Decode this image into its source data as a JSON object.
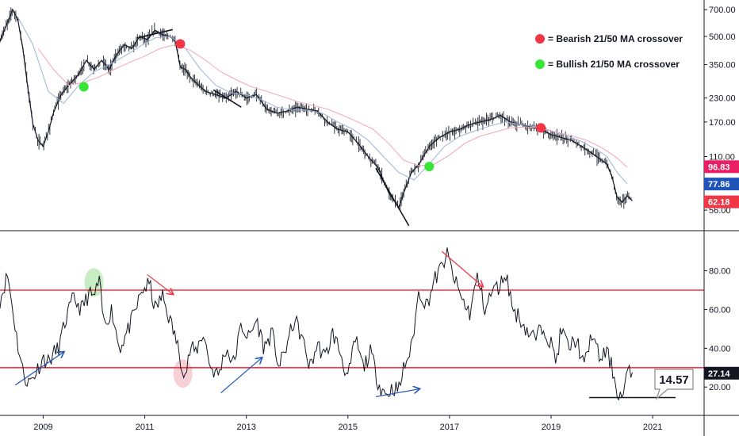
{
  "chart_data": [
    {
      "type": "line",
      "panel": "price",
      "y_scale": "log",
      "ylim": [
        45,
        760
      ],
      "x_tick_labels": [
        "2009",
        "2011",
        "2013",
        "2015",
        "2017",
        "2019",
        "2021"
      ],
      "x_ticks": [
        2009,
        2011,
        2013,
        2015,
        2017,
        2019,
        2021
      ],
      "xlim": [
        2008.15,
        2021.95
      ],
      "y_tick_labels": [
        "700.00",
        "500.00",
        "350.00",
        "230.00",
        "170.00",
        "110.00",
        "56.00"
      ],
      "y_ticks": [
        700,
        500,
        350,
        230,
        170,
        110,
        56
      ],
      "colors": {
        "price": "#131722",
        "ma21": "#9db3d8",
        "ma50": "#f2a6b8"
      },
      "series": [
        {
          "key": "price",
          "x": [
            2008.15,
            2008.3,
            2008.4,
            2008.5,
            2008.6,
            2008.7,
            2008.8,
            2008.9,
            2009.0,
            2009.1,
            2009.2,
            2009.35,
            2009.5,
            2009.7,
            2009.85,
            2010.0,
            2010.15,
            2010.3,
            2010.45,
            2010.6,
            2010.75,
            2010.9,
            2011.05,
            2011.2,
            2011.35,
            2011.5,
            2011.6,
            2011.7,
            2011.8,
            2011.9,
            2012.0,
            2012.2,
            2012.4,
            2012.6,
            2012.8,
            2013.0,
            2013.2,
            2013.4,
            2013.6,
            2013.8,
            2014.0,
            2014.2,
            2014.4,
            2014.6,
            2014.8,
            2015.0,
            2015.2,
            2015.4,
            2015.6,
            2015.8,
            2016.0,
            2016.1,
            2016.25,
            2016.4,
            2016.6,
            2016.8,
            2017.0,
            2017.2,
            2017.4,
            2017.6,
            2017.8,
            2018.0,
            2018.2,
            2018.4,
            2018.6,
            2018.8,
            2019.0,
            2019.2,
            2019.4,
            2019.6,
            2019.8,
            2020.0,
            2020.1,
            2020.2,
            2020.3,
            2020.4,
            2020.5,
            2020.6
          ],
          "y": [
            470,
            600,
            700,
            620,
            430,
            260,
            165,
            135,
            125,
            150,
            190,
            240,
            270,
            310,
            370,
            330,
            370,
            330,
            400,
            450,
            430,
            500,
            480,
            540,
            510,
            500,
            470,
            340,
            330,
            300,
            280,
            250,
            240,
            230,
            250,
            230,
            240,
            200,
            190,
            195,
            205,
            200,
            195,
            170,
            155,
            150,
            130,
            110,
            95,
            70,
            58,
            70,
            90,
            100,
            125,
            140,
            150,
            155,
            165,
            170,
            175,
            185,
            170,
            165,
            160,
            155,
            145,
            140,
            135,
            125,
            115,
            105,
            100,
            85,
            66,
            62,
            67,
            63
          ]
        },
        {
          "key": "ma21",
          "x": [
            2008.5,
            2008.8,
            2009.1,
            2009.4,
            2009.7,
            2010.0,
            2010.3,
            2010.6,
            2010.9,
            2011.2,
            2011.5,
            2011.8,
            2012.1,
            2012.4,
            2012.7,
            2013.0,
            2013.3,
            2013.6,
            2013.9,
            2014.2,
            2014.5,
            2014.8,
            2015.1,
            2015.4,
            2015.7,
            2016.0,
            2016.3,
            2016.6,
            2016.9,
            2017.2,
            2017.5,
            2017.8,
            2018.1,
            2018.4,
            2018.7,
            2019.0,
            2019.3,
            2019.6,
            2019.9,
            2020.1,
            2020.3,
            2020.5
          ],
          "y": [
            640,
            450,
            250,
            215,
            270,
            320,
            350,
            390,
            440,
            490,
            500,
            430,
            330,
            270,
            245,
            240,
            225,
            205,
            198,
            198,
            190,
            170,
            155,
            135,
            110,
            90,
            82,
            100,
            125,
            142,
            152,
            162,
            170,
            165,
            160,
            152,
            143,
            133,
            120,
            110,
            90,
            78
          ]
        },
        {
          "key": "ma50",
          "x": [
            2008.9,
            2009.2,
            2009.5,
            2009.8,
            2010.1,
            2010.4,
            2010.7,
            2011.0,
            2011.3,
            2011.6,
            2011.9,
            2012.2,
            2012.5,
            2012.8,
            2013.1,
            2013.4,
            2013.7,
            2014.0,
            2014.3,
            2014.6,
            2014.9,
            2015.2,
            2015.5,
            2015.8,
            2016.1,
            2016.4,
            2016.7,
            2017.0,
            2017.3,
            2017.6,
            2017.9,
            2018.2,
            2018.5,
            2018.8,
            2019.1,
            2019.4,
            2019.7,
            2020.0,
            2020.3,
            2020.5
          ],
          "y": [
            430,
            330,
            270,
            280,
            300,
            330,
            360,
            390,
            430,
            450,
            420,
            370,
            320,
            290,
            265,
            250,
            235,
            220,
            210,
            200,
            185,
            170,
            155,
            130,
            105,
            98,
            100,
            112,
            130,
            142,
            150,
            158,
            160,
            158,
            150,
            143,
            135,
            123,
            108,
            96
          ]
        }
      ],
      "legend": [
        {
          "label": "= Bearish 21/50 MA crossover",
          "color": "#f23645"
        },
        {
          "label": "= Bullish 21/50 MA crossover",
          "color": "#35e635"
        }
      ],
      "crossover_markers": [
        {
          "type": "bullish",
          "x": 2009.8,
          "y": 265,
          "color": "#35e635"
        },
        {
          "type": "bearish",
          "x": 2011.7,
          "y": 455,
          "color": "#f23645"
        },
        {
          "type": "bullish",
          "x": 2016.6,
          "y": 97,
          "color": "#35e635"
        },
        {
          "type": "bearish",
          "x": 2018.8,
          "y": 158,
          "color": "#f23645"
        }
      ],
      "trend_lines": [
        {
          "x": [
            2010.85,
            2011.55
          ],
          "y": [
            490,
            545
          ]
        },
        {
          "x": [
            2012.35,
            2012.9
          ],
          "y": [
            255,
            205
          ]
        },
        {
          "x": [
            2015.55,
            2016.2
          ],
          "y": [
            95,
            46
          ]
        }
      ],
      "last_value_labels": [
        {
          "value": 96.83,
          "text": "96.83",
          "color": "#e91e63"
        },
        {
          "value": 77.86,
          "text": "77.86",
          "color": "#1e53b8"
        },
        {
          "value": 62.18,
          "text": "62.18",
          "color": "#f23645"
        }
      ]
    },
    {
      "type": "line",
      "panel": "rsi",
      "ylim": [
        7,
        97
      ],
      "y_tick_labels": [
        "80.00",
        "60.00",
        "40.00",
        "20.00"
      ],
      "y_ticks": [
        80,
        60,
        40,
        20
      ],
      "horizontal_lines": [
        {
          "y": 70,
          "color": "#f23645"
        },
        {
          "y": 30,
          "color": "#f23645"
        }
      ],
      "colors": {
        "line": "#131722"
      },
      "series": [
        {
          "key": "rsi",
          "x": [
            2008.15,
            2008.3,
            2008.4,
            2008.5,
            2008.6,
            2008.7,
            2008.8,
            2008.9,
            2009.0,
            2009.1,
            2009.2,
            2009.3,
            2009.45,
            2009.6,
            2009.75,
            2009.9,
            2010.0,
            2010.1,
            2010.2,
            2010.35,
            2010.5,
            2010.65,
            2010.8,
            2010.95,
            2011.1,
            2011.2,
            2011.35,
            2011.5,
            2011.6,
            2011.7,
            2011.8,
            2011.9,
            2012.0,
            2012.15,
            2012.3,
            2012.45,
            2012.6,
            2012.75,
            2012.9,
            2013.05,
            2013.2,
            2013.35,
            2013.5,
            2013.65,
            2013.8,
            2013.95,
            2014.1,
            2014.25,
            2014.4,
            2014.55,
            2014.7,
            2014.85,
            2015.0,
            2015.15,
            2015.3,
            2015.45,
            2015.6,
            2015.75,
            2015.9,
            2016.0,
            2016.1,
            2016.25,
            2016.4,
            2016.55,
            2016.7,
            2016.85,
            2016.95,
            2017.1,
            2017.25,
            2017.4,
            2017.55,
            2017.7,
            2017.85,
            2018.0,
            2018.1,
            2018.25,
            2018.4,
            2018.55,
            2018.7,
            2018.85,
            2019.0,
            2019.1,
            2019.2,
            2019.35,
            2019.5,
            2019.65,
            2019.8,
            2019.95,
            2020.1,
            2020.2,
            2020.3,
            2020.4,
            2020.5,
            2020.6
          ],
          "y": [
            65,
            78,
            60,
            42,
            28,
            22,
            25,
            30,
            35,
            33,
            37,
            40,
            55,
            66,
            60,
            68,
            66,
            75,
            52,
            60,
            40,
            48,
            58,
            70,
            73,
            60,
            67,
            54,
            46,
            35,
            26,
            40,
            38,
            48,
            30,
            26,
            40,
            32,
            52,
            45,
            55,
            40,
            48,
            30,
            42,
            55,
            45,
            30,
            42,
            35,
            48,
            38,
            24,
            45,
            30,
            38,
            22,
            16,
            20,
            18,
            30,
            40,
            70,
            62,
            75,
            82,
            89,
            75,
            65,
            58,
            77,
            60,
            70,
            72,
            80,
            60,
            55,
            48,
            45,
            52,
            42,
            33,
            50,
            40,
            45,
            30,
            48,
            35,
            38,
            30,
            18,
            14,
            27,
            27
          ]
        }
      ],
      "highlight_ellipses": [
        {
          "x": 2010.0,
          "y": 74,
          "color": "#bbe8b4"
        },
        {
          "x": 2011.75,
          "y": 27,
          "color": "#f5c4ca"
        }
      ],
      "arrows": [
        {
          "x": [
            2008.45,
            2009.4
          ],
          "y": [
            21,
            38
          ],
          "color": "#1e53b8"
        },
        {
          "x": [
            2011.05,
            2011.55
          ],
          "y": [
            78,
            68
          ],
          "color": "#f23645"
        },
        {
          "x": [
            2012.5,
            2013.3
          ],
          "y": [
            17,
            35
          ],
          "color": "#1e53b8"
        },
        {
          "x": [
            2015.55,
            2016.4
          ],
          "y": [
            15,
            19
          ],
          "color": "#1e53b8"
        },
        {
          "x": [
            2016.85,
            2017.65
          ],
          "y": [
            90,
            72
          ],
          "color": "#f23645"
        }
      ],
      "support_line": {
        "x": [
          2019.75,
          2021.45
        ],
        "y": 14.57
      },
      "callout": {
        "text": "14.57"
      },
      "last_value_label": {
        "value": 27.14,
        "text": "27.14",
        "color": "#131722"
      }
    }
  ]
}
